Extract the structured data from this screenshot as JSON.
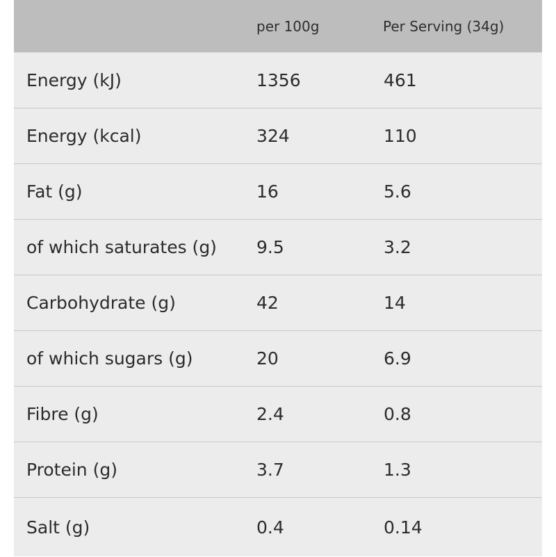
{
  "table": {
    "headers": [
      "",
      "per 100g",
      "Per Serving (34g)"
    ],
    "rows": [
      [
        "Energy (kJ)",
        "1356",
        "461"
      ],
      [
        "Energy (kcal)",
        "324",
        "110"
      ],
      [
        "Fat (g)",
        "16",
        "5.6"
      ],
      [
        "of which saturates (g)",
        "9.5",
        "3.2"
      ],
      [
        "Carbohydrate (g)",
        "42",
        "14"
      ],
      [
        "of which sugars (g)",
        "20",
        "6.9"
      ],
      [
        "Fibre (g)",
        "2.4",
        "0.8"
      ],
      [
        "Protein (g)",
        "3.7",
        "1.3"
      ],
      [
        "Salt (g)",
        "0.4",
        "0.14"
      ]
    ]
  },
  "colors": {
    "header_bg": "#bdbdbd",
    "row_bg": "#ececec",
    "divider": "#c8c8c8"
  }
}
